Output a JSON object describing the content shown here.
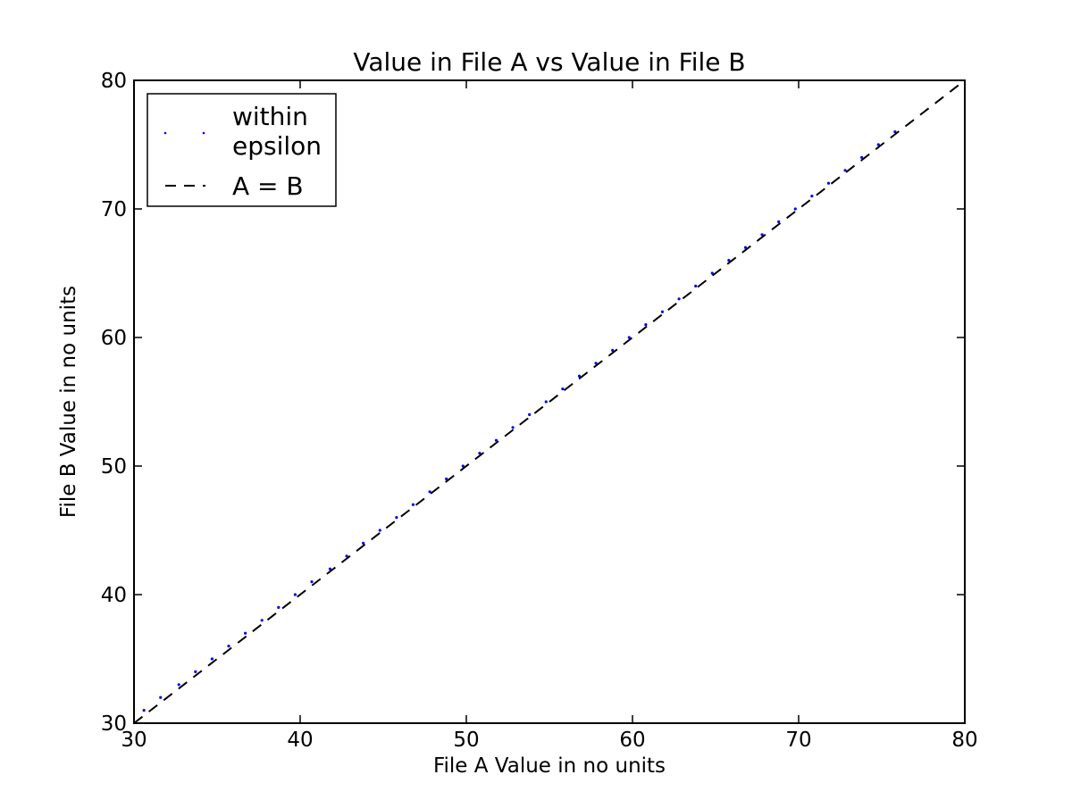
{
  "chart_data": {
    "type": "scatter",
    "title": "Value in File A vs Value in File B",
    "xlabel": "File A Value in no units",
    "ylabel": "File B Value in no units",
    "xlim": [
      30,
      80
    ],
    "ylim": [
      30,
      80
    ],
    "xticks": [
      30,
      40,
      50,
      60,
      70,
      80
    ],
    "yticks": [
      30,
      40,
      50,
      60,
      70,
      80
    ],
    "grid": false,
    "legend_position": "top-left",
    "series": [
      {
        "name": "within\nepsilon",
        "style": "point",
        "color": "#0000ff",
        "x": [
          30.6,
          31.6,
          32.7,
          33.7,
          34.7,
          35.7,
          36.7,
          37.7,
          38.7,
          39.7,
          40.7,
          41.8,
          42.8,
          43.8,
          44.8,
          45.8,
          46.8,
          47.8,
          48.8,
          49.8,
          50.8,
          51.8,
          52.8,
          53.8,
          54.8,
          55.8,
          56.8,
          57.8,
          58.8,
          59.8,
          60.8,
          61.8,
          62.8,
          63.8,
          64.8,
          65.8,
          66.8,
          67.8,
          68.8,
          69.8,
          70.8,
          71.8,
          72.8,
          73.8,
          74.8,
          75.8
        ],
        "y": [
          31,
          32,
          33,
          34,
          35,
          36,
          37,
          38,
          39,
          40,
          41,
          42,
          43,
          44,
          45,
          46,
          47,
          48,
          49,
          50,
          51,
          52,
          53,
          54,
          55,
          56,
          57,
          58,
          59,
          60,
          61,
          62,
          63,
          64,
          65,
          66,
          67,
          68,
          69,
          70,
          71,
          72,
          73,
          74,
          75,
          76
        ]
      },
      {
        "name": "A = B",
        "style": "dashed-line",
        "color": "#000000",
        "x": [
          30,
          80
        ],
        "y": [
          30,
          80
        ]
      }
    ]
  }
}
